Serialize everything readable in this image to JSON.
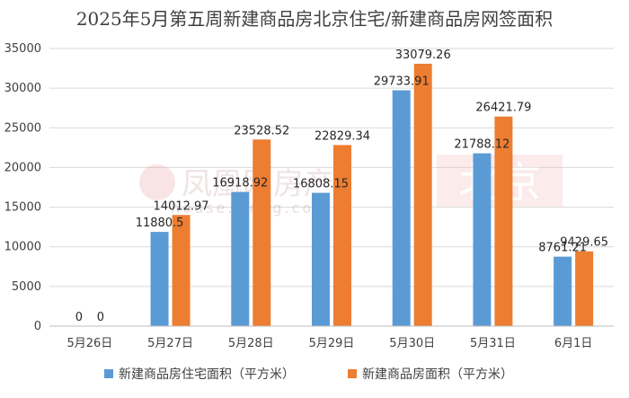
{
  "colors": {
    "series1": "#5b9bd5",
    "series2": "#ed7d31",
    "grid": "#d9d9d9",
    "text": "#404040"
  },
  "watermark": {
    "brand": "凤凰网房产",
    "domain": "house.ifeng.com",
    "city": "北京"
  },
  "chart_data": {
    "type": "bar",
    "title": "2025年5月第五周新建商品房北京住宅/新建商品房网签面积",
    "xlabel": "",
    "ylabel": "",
    "categories": [
      "5月26日",
      "5月27日",
      "5月28日",
      "5月29日",
      "5月30日",
      "5月31日",
      "6月1日"
    ],
    "series": [
      {
        "name": "新建商品房住宅面积（平方米）",
        "values": [
          0,
          11880.5,
          16918.92,
          16808.15,
          29733.91,
          21788.12,
          8761.21
        ],
        "labels": [
          "0",
          "11880.5",
          "16918.92",
          "16808.15",
          "29733.91",
          "21788.12",
          "8761.21"
        ]
      },
      {
        "name": "新建商品房面积（平方米）",
        "values": [
          0,
          14012.97,
          23528.52,
          22829.34,
          33079.26,
          26421.79,
          9429.65
        ],
        "labels": [
          "0",
          "14012.97",
          "23528.52",
          "22829.34",
          "33079.26",
          "26421.79",
          "9429.65"
        ]
      }
    ],
    "ylim": [
      0,
      35000
    ],
    "yticks": [
      0,
      5000,
      10000,
      15000,
      20000,
      25000,
      30000,
      35000
    ],
    "ytick_labels": [
      "0",
      "5000",
      "10000",
      "15000",
      "20000",
      "25000",
      "30000",
      "35000"
    ],
    "grid": true,
    "legend_position": "bottom"
  }
}
